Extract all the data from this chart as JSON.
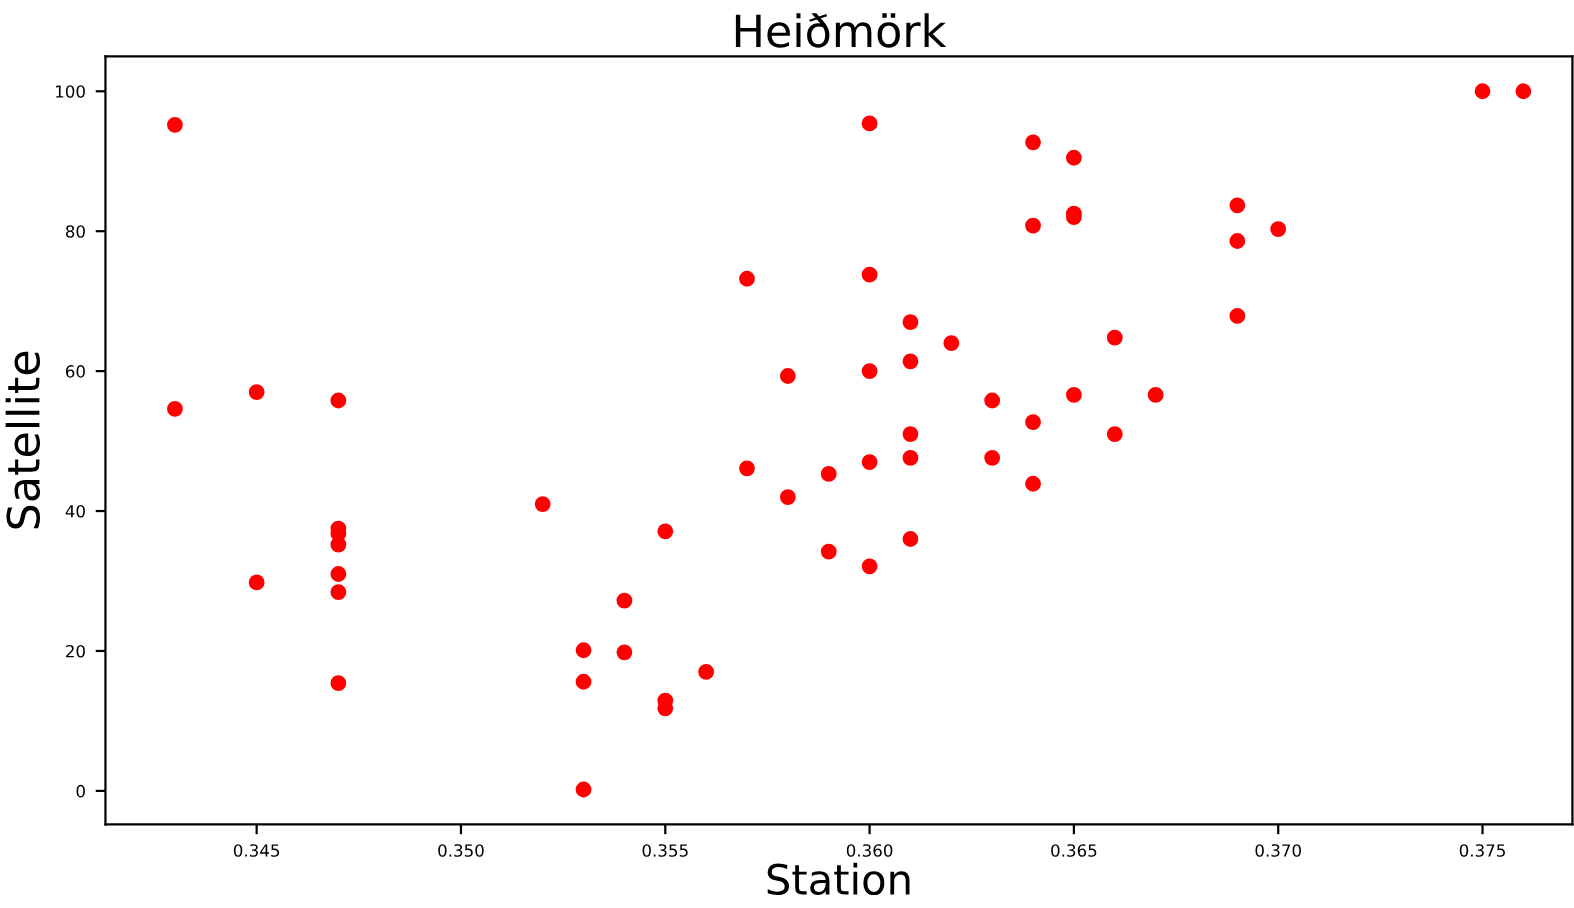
{
  "chart_data": {
    "type": "scatter",
    "title": "Heiðmörk",
    "xlabel": "Station",
    "ylabel": "Satellite",
    "series": [
      {
        "color": "#ff0000",
        "x": [
          0.343,
          0.343,
          0.345,
          0.345,
          0.347,
          0.347,
          0.347,
          0.347,
          0.347,
          0.347,
          0.347,
          0.352,
          0.353,
          0.353,
          0.353,
          0.354,
          0.354,
          0.355,
          0.355,
          0.355,
          0.356,
          0.357,
          0.357,
          0.358,
          0.358,
          0.359,
          0.359,
          0.36,
          0.36,
          0.36,
          0.36,
          0.36,
          0.361,
          0.361,
          0.361,
          0.361,
          0.361,
          0.362,
          0.363,
          0.363,
          0.364,
          0.364,
          0.364,
          0.364,
          0.365,
          0.365,
          0.365,
          0.365,
          0.366,
          0.366,
          0.367,
          0.369,
          0.369,
          0.369,
          0.37,
          0.375,
          0.376
        ],
        "values": [
          95.2,
          54.6,
          57,
          29.8,
          55.8,
          37.5,
          36.8,
          35.2,
          31,
          28.4,
          15.4,
          41,
          20.1,
          15.6,
          0.2,
          27.2,
          19.8,
          37.1,
          12.9,
          11.8,
          17,
          73.2,
          46.1,
          59.3,
          42,
          45.3,
          34.2,
          95.4,
          73.8,
          60,
          47,
          32.1,
          67,
          61.4,
          51,
          47.6,
          36,
          64,
          55.8,
          47.6,
          92.7,
          80.8,
          52.7,
          43.9,
          90.5,
          82.5,
          82,
          56.6,
          64.8,
          51,
          56.6,
          83.7,
          78.6,
          67.9,
          80.3,
          100,
          100
        ]
      }
    ],
    "marker": "circle",
    "xlim": [
      0.3413,
      0.3772
    ],
    "xticks": [
      {
        "value": 0.345,
        "label": "0.345"
      },
      {
        "value": 0.35,
        "label": "0.350"
      },
      {
        "value": 0.355,
        "label": "0.355"
      },
      {
        "value": 0.36,
        "label": "0.360"
      },
      {
        "value": 0.365,
        "label": "0.365"
      },
      {
        "value": 0.37,
        "label": "0.370"
      },
      {
        "value": 0.375,
        "label": "0.375"
      }
    ],
    "ylim": [
      -4.8,
      105
    ],
    "yticks": [
      0,
      20,
      40,
      60,
      80,
      100
    ],
    "grid": false,
    "legend": false
  }
}
